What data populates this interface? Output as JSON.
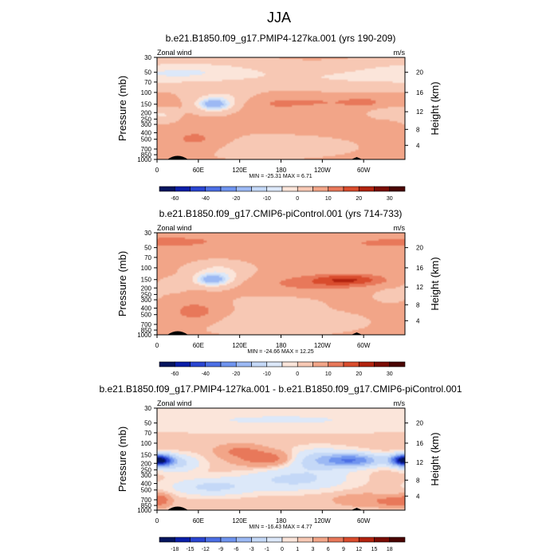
{
  "figure_title": "JJA",
  "chart_data": [
    {
      "type": "heatmap",
      "title": "b.e21.B1850.f09_g17.PMIP4-127ka.001 (yrs 190-209)",
      "left_label": "Zonal wind",
      "right_label": "m/s",
      "ylabel": "Pressure (mb)",
      "y2label": "Height (km)",
      "x_tick_labels": [
        "0",
        "60E",
        "120E",
        "180",
        "120W",
        "60W"
      ],
      "y_tick_labels": [
        "30",
        "50",
        "70",
        "100",
        "150",
        "200",
        "250",
        "300",
        "400",
        "500",
        "700",
        "850",
        "1000"
      ],
      "y2_tick_labels": [
        "4",
        "8",
        "12",
        "16",
        "20"
      ],
      "xlim": [
        0,
        360
      ],
      "ylim": [
        1000,
        30
      ],
      "y_scale": "log",
      "grid": false,
      "stats": "MIN = -25.31  MAX =   6.71",
      "colorbar_levels": [
        -70,
        -60,
        -50,
        -40,
        -30,
        -20,
        -15,
        -10,
        -5,
        0,
        5,
        10,
        15,
        20,
        30
      ],
      "colorbar_tick_labels": [
        "-60",
        "-40",
        "-20",
        "-10",
        "0",
        "10",
        "20",
        "30"
      ],
      "colorbar_label_positions": [
        1,
        3,
        5,
        7,
        9,
        11,
        13,
        15
      ],
      "contour_colors": [
        "#05155e",
        "#0a1ea8",
        "#2a45d1",
        "#4c6fe5",
        "#6f94ef",
        "#9cb9f4",
        "#c4d8f7",
        "#dce8f9",
        "#fbe5da",
        "#f7c8b4",
        "#f2a588",
        "#e8785a",
        "#d94c2d",
        "#b2230f",
        "#7a0c03",
        "#4a0402"
      ],
      "features": [
        {
          "lon": 20,
          "p": 50,
          "value": -7,
          "sx": 60,
          "sy": 0.25
        },
        {
          "lon": 90,
          "p": 50,
          "value": -5,
          "sx": 60,
          "sy": 0.25
        },
        {
          "lon": 260,
          "p": 60,
          "value": -5,
          "sx": 90,
          "sy": 0.25
        },
        {
          "lon": 82,
          "p": 150,
          "value": -25,
          "sx": 14,
          "sy": 0.13
        },
        {
          "lon": 95,
          "p": 130,
          "value": -8,
          "sx": 28,
          "sy": 0.25
        },
        {
          "lon": 10,
          "p": 220,
          "value": -5,
          "sx": 12,
          "sy": 0.15
        },
        {
          "lon": 210,
          "p": 140,
          "value": 5,
          "sx": 80,
          "sy": 0.16
        },
        {
          "lon": 300,
          "p": 140,
          "value": 4,
          "sx": 20,
          "sy": 0.12
        },
        {
          "lon": 165,
          "p": 200,
          "value": 3,
          "sx": 35,
          "sy": 0.2
        },
        {
          "lon": 340,
          "p": 200,
          "value": -4,
          "sx": 18,
          "sy": 0.12
        },
        {
          "lon": 55,
          "p": 500,
          "value": 6,
          "sx": 28,
          "sy": 0.25
        },
        {
          "lon": 20,
          "p": 800,
          "value": 3,
          "sx": 15,
          "sy": 0.15
        },
        {
          "lon": 150,
          "p": 650,
          "value": -2,
          "sx": 80,
          "sy": 0.25
        }
      ]
    },
    {
      "type": "heatmap",
      "title": "b.e21.B1850.f09_g17.CMIP6-piControl.001 (yrs 714-733)",
      "left_label": "Zonal wind",
      "right_label": "m/s",
      "ylabel": "Pressure (mb)",
      "y2label": "Height (km)",
      "x_tick_labels": [
        "0",
        "60E",
        "120E",
        "180",
        "120W",
        "60W"
      ],
      "y_tick_labels": [
        "30",
        "50",
        "70",
        "100",
        "150",
        "200",
        "250",
        "300",
        "400",
        "500",
        "700",
        "850",
        "1000"
      ],
      "y2_tick_labels": [
        "4",
        "8",
        "12",
        "16",
        "20"
      ],
      "xlim": [
        0,
        360
      ],
      "ylim": [
        1000,
        30
      ],
      "y_scale": "log",
      "grid": false,
      "stats": "MIN = -24.66  MAX =  12.25",
      "colorbar_levels": [
        -70,
        -60,
        -50,
        -40,
        -30,
        -20,
        -15,
        -10,
        -5,
        0,
        5,
        10,
        15,
        20,
        30
      ],
      "colorbar_tick_labels": [
        "-60",
        "-40",
        "-20",
        "-10",
        "0",
        "10",
        "20",
        "30"
      ],
      "colorbar_label_positions": [
        1,
        3,
        5,
        7,
        9,
        11,
        13,
        15
      ],
      "contour_colors": [
        "#05155e",
        "#0a1ea8",
        "#2a45d1",
        "#4c6fe5",
        "#6f94ef",
        "#9cb9f4",
        "#c4d8f7",
        "#dce8f9",
        "#fbe5da",
        "#f7c8b4",
        "#f2a588",
        "#e8785a",
        "#d94c2d",
        "#b2230f",
        "#7a0c03",
        "#4a0402"
      ],
      "features": [
        {
          "lon": 60,
          "p": 40,
          "value": 4,
          "sx": 100,
          "sy": 0.3
        },
        {
          "lon": 260,
          "p": 45,
          "value": 3,
          "sx": 100,
          "sy": 0.3
        },
        {
          "lon": 80,
          "p": 150,
          "value": -24,
          "sx": 15,
          "sy": 0.13
        },
        {
          "lon": 90,
          "p": 120,
          "value": -8,
          "sx": 25,
          "sy": 0.25
        },
        {
          "lon": 20,
          "p": 180,
          "value": -4,
          "sx": 15,
          "sy": 0.15
        },
        {
          "lon": 280,
          "p": 150,
          "value": 12,
          "sx": 35,
          "sy": 0.13
        },
        {
          "lon": 230,
          "p": 170,
          "value": 7,
          "sx": 55,
          "sy": 0.2
        },
        {
          "lon": 340,
          "p": 250,
          "value": -3,
          "sx": 15,
          "sy": 0.15
        },
        {
          "lon": 170,
          "p": 350,
          "value": -2,
          "sx": 40,
          "sy": 0.2
        },
        {
          "lon": 55,
          "p": 450,
          "value": 7,
          "sx": 25,
          "sy": 0.25
        },
        {
          "lon": 20,
          "p": 800,
          "value": 3,
          "sx": 15,
          "sy": 0.15
        },
        {
          "lon": 170,
          "p": 650,
          "value": -3,
          "sx": 70,
          "sy": 0.25
        }
      ]
    },
    {
      "type": "heatmap",
      "title": "b.e21.B1850.f09_g17.PMIP4-127ka.001 - b.e21.B1850.f09_g17.CMIP6-piControl.001",
      "left_label": "Zonal wind",
      "right_label": "m/s",
      "ylabel": "Pressure (mb)",
      "y2label": "Height (km)",
      "x_tick_labels": [
        "0",
        "60E",
        "120E",
        "180",
        "120W",
        "60W"
      ],
      "y_tick_labels": [
        "30",
        "50",
        "70",
        "100",
        "150",
        "200",
        "250",
        "300",
        "400",
        "500",
        "700",
        "850",
        "1000"
      ],
      "y2_tick_labels": [
        "4",
        "8",
        "12",
        "16",
        "20"
      ],
      "xlim": [
        0,
        360
      ],
      "ylim": [
        1000,
        30
      ],
      "y_scale": "log",
      "grid": false,
      "stats": "MIN = -16.43  MAX =   4.77",
      "colorbar_levels": [
        -21,
        -18,
        -15,
        -12,
        -9,
        -6,
        -3,
        -1,
        0,
        1,
        3,
        6,
        9,
        12,
        15,
        18,
        21
      ],
      "colorbar_tick_labels": [
        "-18",
        "-15",
        "-12",
        "-9",
        "-6",
        "-3",
        "-1",
        "0",
        "1",
        "3",
        "6",
        "9",
        "12",
        "15",
        "18"
      ],
      "colorbar_label_positions": [
        1,
        2,
        3,
        4,
        5,
        6,
        7,
        8,
        9,
        10,
        11,
        12,
        13,
        14,
        15
      ],
      "contour_colors": [
        "#05155e",
        "#0a1ea8",
        "#2a45d1",
        "#4c6fe5",
        "#6f94ef",
        "#9cb9f4",
        "#c4d8f7",
        "#dce8f9",
        "#fbe5da",
        "#f7c8b4",
        "#f2a588",
        "#e8785a",
        "#d94c2d",
        "#b2230f",
        "#7a0c03",
        "#4a0402"
      ],
      "features": [
        {
          "lon": 180,
          "p": 45,
          "value": -1.5,
          "sx": 200,
          "sy": 0.3
        },
        {
          "lon": 8,
          "p": 180,
          "value": -13,
          "sx": 12,
          "sy": 0.13
        },
        {
          "lon": 30,
          "p": 200,
          "value": -4,
          "sx": 22,
          "sy": 0.2
        },
        {
          "lon": 120,
          "p": 130,
          "value": 3,
          "sx": 22,
          "sy": 0.15
        },
        {
          "lon": 160,
          "p": 170,
          "value": 4.5,
          "sx": 30,
          "sy": 0.18
        },
        {
          "lon": 235,
          "p": 180,
          "value": -5,
          "sx": 35,
          "sy": 0.25
        },
        {
          "lon": 285,
          "p": 180,
          "value": -11,
          "sx": 28,
          "sy": 0.15
        },
        {
          "lon": 355,
          "p": 180,
          "value": -16,
          "sx": 12,
          "sy": 0.13
        },
        {
          "lon": 200,
          "p": 350,
          "value": -4,
          "sx": 50,
          "sy": 0.25
        },
        {
          "lon": 80,
          "p": 450,
          "value": -4,
          "sx": 40,
          "sy": 0.2
        },
        {
          "lon": 5,
          "p": 700,
          "value": 4,
          "sx": 10,
          "sy": 0.15
        },
        {
          "lon": 300,
          "p": 700,
          "value": 2,
          "sx": 30,
          "sy": 0.15
        },
        {
          "lon": 340,
          "p": 750,
          "value": 3,
          "sx": 15,
          "sy": 0.12
        }
      ]
    }
  ]
}
